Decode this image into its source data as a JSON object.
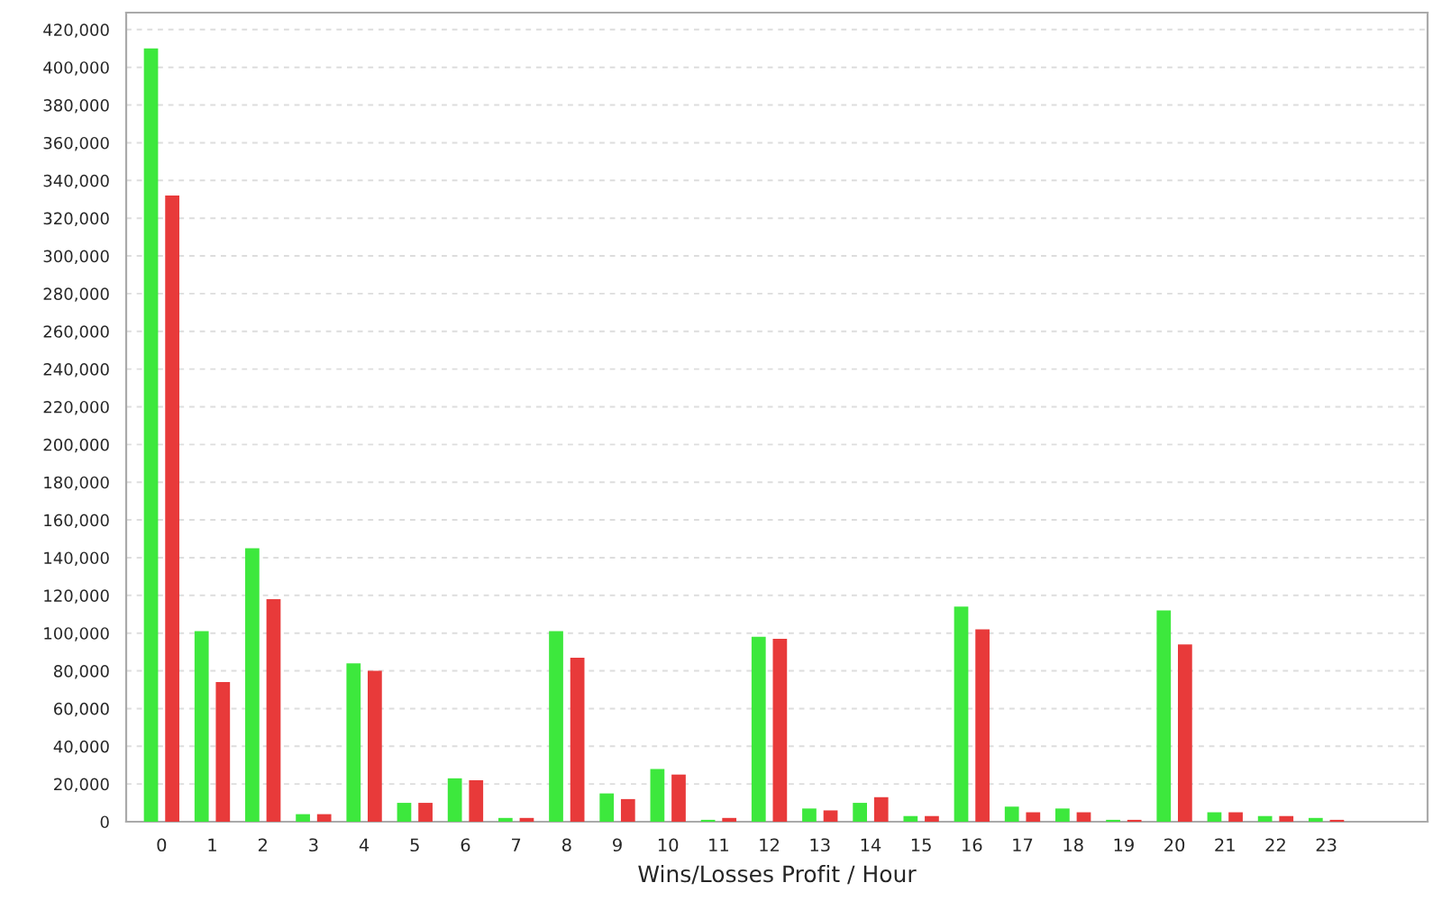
{
  "chart_data": {
    "type": "bar",
    "xlabel": "Wins/Losses Profit / Hour",
    "categories": [
      "0",
      "1",
      "2",
      "3",
      "4",
      "5",
      "6",
      "7",
      "8",
      "9",
      "10",
      "11",
      "12",
      "13",
      "14",
      "15",
      "16",
      "17",
      "18",
      "19",
      "20",
      "21",
      "22",
      "23"
    ],
    "series": [
      {
        "color": "#3de83d",
        "values": [
          410000,
          101000,
          145000,
          4000,
          84000,
          10000,
          23000,
          2000,
          101000,
          15000,
          28000,
          1000,
          98000,
          7000,
          10000,
          3000,
          114000,
          8000,
          7000,
          1000,
          112000,
          5000,
          3000,
          2000
        ]
      },
      {
        "color": "#e83a3a",
        "values": [
          332000,
          74000,
          118000,
          4000,
          80000,
          10000,
          22000,
          2000,
          87000,
          12000,
          25000,
          2000,
          97000,
          6000,
          13000,
          3000,
          102000,
          5000,
          5000,
          1000,
          94000,
          5000,
          3000,
          1000
        ]
      }
    ],
    "ylim": [
      0,
      429000
    ],
    "yticks": [
      {
        "value": 0,
        "label": "0"
      },
      {
        "value": 20000,
        "label": "20,000"
      },
      {
        "value": 40000,
        "label": "40,000"
      },
      {
        "value": 60000,
        "label": "60,000"
      },
      {
        "value": 80000,
        "label": "80,000"
      },
      {
        "value": 100000,
        "label": "100,000"
      },
      {
        "value": 120000,
        "label": "120,000"
      },
      {
        "value": 140000,
        "label": "140,000"
      },
      {
        "value": 160000,
        "label": "160,000"
      },
      {
        "value": 180000,
        "label": "180,000"
      },
      {
        "value": 200000,
        "label": "200,000"
      },
      {
        "value": 220000,
        "label": "220,000"
      },
      {
        "value": 240000,
        "label": "240,000"
      },
      {
        "value": 260000,
        "label": "260,000"
      },
      {
        "value": 280000,
        "label": "280,000"
      },
      {
        "value": 300000,
        "label": "300,000"
      },
      {
        "value": 320000,
        "label": "320,000"
      },
      {
        "value": 340000,
        "label": "340,000"
      },
      {
        "value": 360000,
        "label": "360,000"
      },
      {
        "value": 380000,
        "label": "380,000"
      },
      {
        "value": 400000,
        "label": "400,000"
      },
      {
        "value": 420000,
        "label": "420,000"
      }
    ],
    "grid": "y",
    "legend": false
  }
}
